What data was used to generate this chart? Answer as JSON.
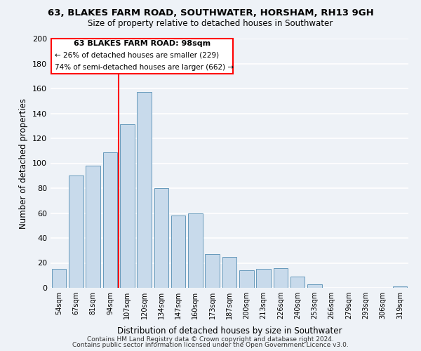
{
  "title": "63, BLAKES FARM ROAD, SOUTHWATER, HORSHAM, RH13 9GH",
  "subtitle": "Size of property relative to detached houses in Southwater",
  "xlabel": "Distribution of detached houses by size in Southwater",
  "ylabel": "Number of detached properties",
  "bar_color": "#c8daeb",
  "bar_edge_color": "#6699bb",
  "categories": [
    "54sqm",
    "67sqm",
    "81sqm",
    "94sqm",
    "107sqm",
    "120sqm",
    "134sqm",
    "147sqm",
    "160sqm",
    "173sqm",
    "187sqm",
    "200sqm",
    "213sqm",
    "226sqm",
    "240sqm",
    "253sqm",
    "266sqm",
    "279sqm",
    "293sqm",
    "306sqm",
    "319sqm"
  ],
  "values": [
    15,
    90,
    98,
    109,
    131,
    157,
    80,
    58,
    60,
    27,
    25,
    14,
    15,
    16,
    9,
    3,
    0,
    0,
    0,
    0,
    1
  ],
  "marker_label": "63 BLAKES FARM ROAD: 98sqm",
  "annotation_line1": "← 26% of detached houses are smaller (229)",
  "annotation_line2": "74% of semi-detached houses are larger (662) →",
  "marker_bar_index": 3,
  "ylim": [
    0,
    200
  ],
  "yticks": [
    0,
    20,
    40,
    60,
    80,
    100,
    120,
    140,
    160,
    180,
    200
  ],
  "footer1": "Contains HM Land Registry data © Crown copyright and database right 2024.",
  "footer2": "Contains public sector information licensed under the Open Government Licence v3.0.",
  "background_color": "#eef2f7",
  "plot_background": "#eef2f7",
  "grid_color": "white"
}
